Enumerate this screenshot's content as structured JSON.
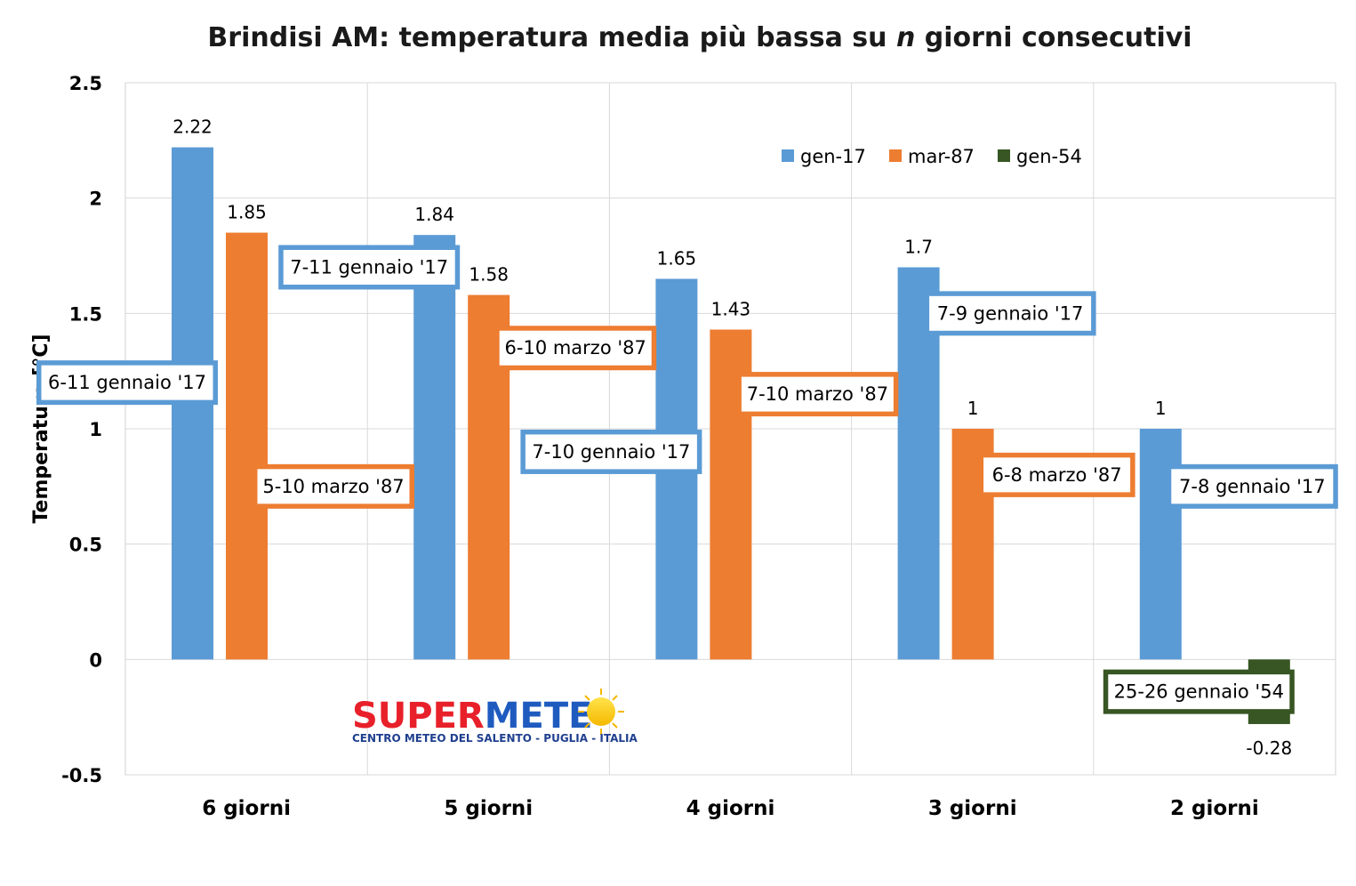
{
  "chart_data": {
    "type": "bar",
    "title_prefix": "Brindisi AM: temperatura media più bassa su ",
    "title_italic": "n",
    "title_suffix": " giorni consecutivi",
    "ylabel": "Temperatura [°C]",
    "xlabel": "",
    "ylim": [
      -0.5,
      2.5
    ],
    "yticks": [
      "-0.5",
      "0",
      "0.5",
      "1",
      "1.5",
      "2",
      "2.5"
    ],
    "grid": "on",
    "legend": "top-right",
    "categories": [
      "6 giorni",
      "5 giorni",
      "4 giorni",
      "3 giorni",
      "2 giorni"
    ],
    "series": [
      {
        "name": "gen-17",
        "color": "#5B9BD5",
        "values": [
          2.22,
          1.84,
          1.65,
          1.7,
          1
        ],
        "labels": [
          "2.22",
          "1.84",
          "1.65",
          "1.7",
          "1"
        ]
      },
      {
        "name": "mar-87",
        "color": "#ED7D31",
        "values": [
          1.85,
          1.58,
          1.43,
          1,
          null
        ],
        "labels": [
          "1.85",
          "1.58",
          "1.43",
          "1",
          ""
        ]
      },
      {
        "name": "gen-54",
        "color": "#375623",
        "values": [
          null,
          null,
          null,
          null,
          -0.28
        ],
        "labels": [
          "",
          "",
          "",
          "",
          "-0.28"
        ]
      }
    ],
    "annotations": [
      {
        "text": "6-11 gennaio '17",
        "series": 0,
        "category": 0,
        "value": 1.2,
        "side": "left"
      },
      {
        "text": "5-10 marzo '87",
        "series": 1,
        "category": 0,
        "value": 0.75,
        "side": "right"
      },
      {
        "text": "7-11 gennaio '17",
        "series": 0,
        "category": 1,
        "value": 1.7,
        "side": "left"
      },
      {
        "text": "6-10 marzo '87",
        "series": 1,
        "category": 1,
        "value": 1.35,
        "side": "right"
      },
      {
        "text": "7-10 gennaio '17",
        "series": 0,
        "category": 2,
        "value": 0.9,
        "side": "left"
      },
      {
        "text": "7-10 marzo '87",
        "series": 1,
        "category": 2,
        "value": 1.15,
        "side": "right"
      },
      {
        "text": "7-9 gennaio '17",
        "series": 0,
        "category": 3,
        "value": 1.5,
        "side": "right"
      },
      {
        "text": "6-8 marzo '87",
        "series": 1,
        "category": 3,
        "value": 0.8,
        "side": "right"
      },
      {
        "text": "7-8 gennaio '17",
        "series": 0,
        "category": 4,
        "value": 0.75,
        "side": "right"
      },
      {
        "text": "25-26 gennaio '54",
        "series": 2,
        "category": 4,
        "value": -0.14,
        "side": "left"
      }
    ]
  },
  "logo": {
    "word_red": "SUPER",
    "word_blue": "METE",
    "subtitle": "CENTRO METEO DEL SALENTO - PUGLIA - ITALIA",
    "icon": "sun-icon",
    "red": "#E8202A",
    "blue": "#1F5BBF"
  }
}
